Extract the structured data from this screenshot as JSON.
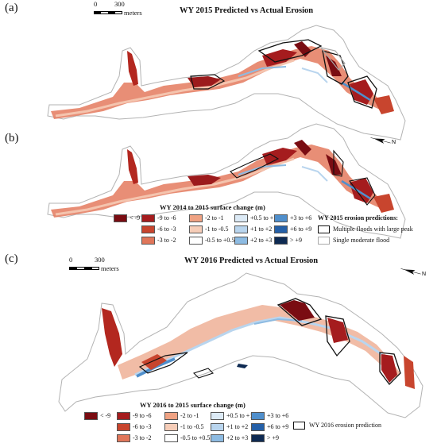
{
  "panels": [
    {
      "letter": "(a)",
      "title": "WY 2015 Predicted vs Actual Erosion"
    },
    {
      "letter": "(b)",
      "title": ""
    },
    {
      "letter": "(c)",
      "title": "WY 2016 Predicted vs Actual Erosion"
    }
  ],
  "scale": {
    "zero": "0",
    "max": "300",
    "unit": "meters"
  },
  "legend_2015": {
    "title": "WY 2014 to 2015 surface change (m)",
    "bins": [
      {
        "label": "< -9",
        "color": "#7a0c12"
      },
      {
        "label": "-9 to -6",
        "color": "#a51c1e"
      },
      {
        "label": "-6 to -3",
        "color": "#c8452e"
      },
      {
        "label": "-3 to -2",
        "color": "#e0765a"
      },
      {
        "label": "-2 to -1",
        "color": "#efa283"
      },
      {
        "label": "-1 to -0.5",
        "color": "#f6cdb8"
      },
      {
        "label": "-0.5 to +0.5",
        "color": "#ffffff"
      },
      {
        "label": "+0.5 to +1",
        "color": "#dceaf6"
      },
      {
        "label": "+1 to +2",
        "color": "#b9d5ee"
      },
      {
        "label": "+2 to +3",
        "color": "#8dbbe2"
      },
      {
        "label": "+3 to +6",
        "color": "#4f8fcc"
      },
      {
        "label": "+6 to +9",
        "color": "#2560a8"
      },
      {
        "label": "> +9",
        "color": "#0e2a52"
      }
    ],
    "predictions_title": "WY 2015 erosion predictions:",
    "predictions": [
      {
        "label": "Multiple floods with large peak",
        "color": "#111111"
      },
      {
        "label": "Single moderate flood",
        "color": "#a9a9a9"
      }
    ]
  },
  "legend_2016": {
    "title": "WY 2016 to 2015 surface change (m)",
    "prediction_label": "WY 2016 erosion prediction"
  },
  "north_arrow": "N"
}
